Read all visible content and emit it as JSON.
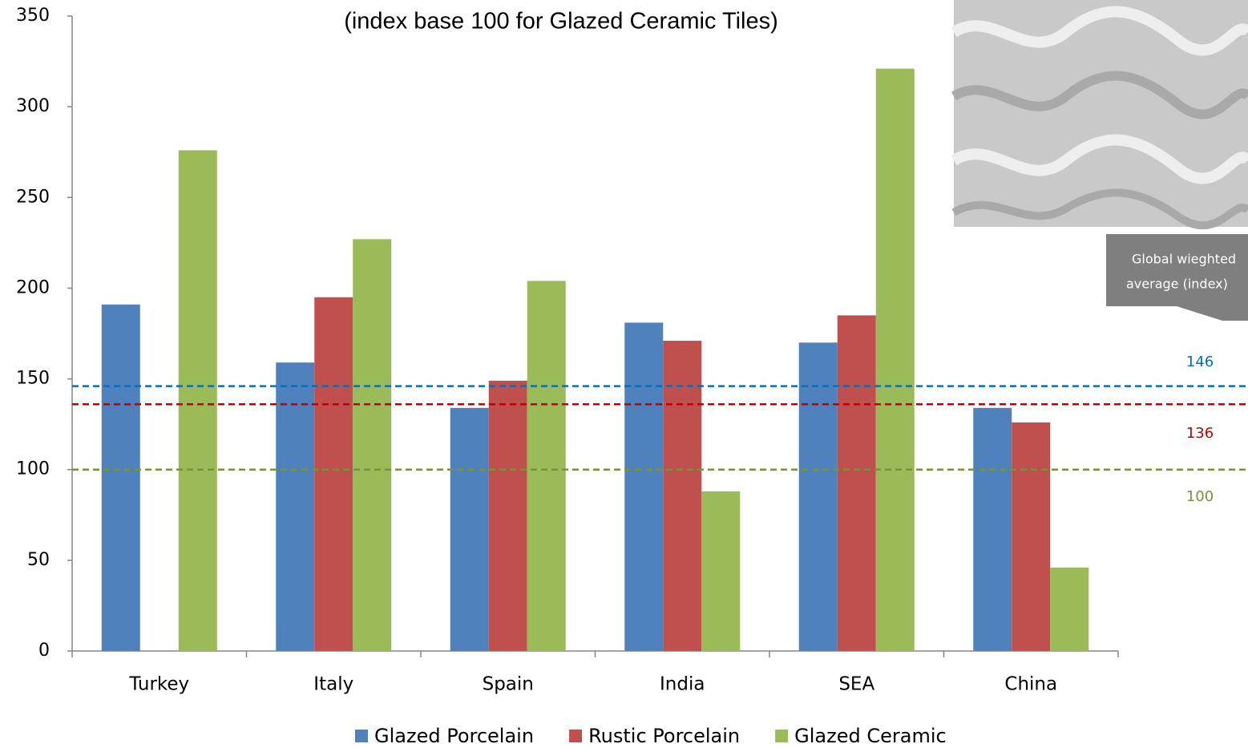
{
  "chart_data": {
    "type": "bar",
    "subtitle": "(index base 100 for Glazed Ceramic Tiles)",
    "categories": [
      "Turkey",
      "Italy",
      "Spain",
      "India",
      "SEA",
      "China"
    ],
    "series": [
      {
        "name": "Glazed Porcelain",
        "color": "#4f81bd",
        "values": [
          191,
          159,
          134,
          181,
          170,
          134
        ]
      },
      {
        "name": "Rustic Porcelain",
        "color": "#c0504d",
        "values": [
          null,
          195,
          149,
          171,
          185,
          126
        ]
      },
      {
        "name": "Glazed Ceramic",
        "color": "#9bbb59",
        "values": [
          276,
          227,
          204,
          88,
          321,
          46
        ]
      }
    ],
    "ylim": [
      0,
      350
    ],
    "yticks": [
      0,
      50,
      100,
      150,
      200,
      250,
      300,
      350
    ],
    "reference_lines": [
      {
        "value": 146,
        "color": "#0070c0"
      },
      {
        "value": 136,
        "color": "#c00000"
      },
      {
        "value": 100,
        "color": "#77933c"
      }
    ],
    "callout": [
      "Global wieghted",
      "average (index)"
    ],
    "legend": "bottom"
  }
}
